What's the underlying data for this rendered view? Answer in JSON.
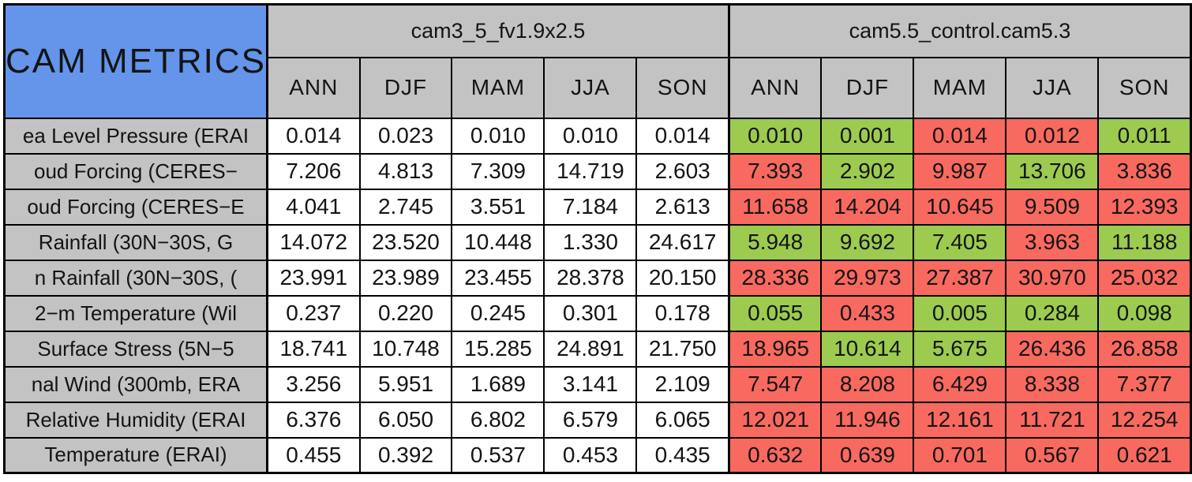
{
  "table": {
    "title": "CAM METRICS",
    "col_groups": [
      {
        "label": "cam3_5_fv1.9x2.5"
      },
      {
        "label": "cam5.5_control.cam5.3"
      }
    ],
    "season_headers": [
      "ANN",
      "DJF",
      "MAM",
      "JJA",
      "SON",
      "ANN",
      "DJF",
      "MAM",
      "JJA",
      "SON"
    ],
    "colors": {
      "title_bg": "#6495ea",
      "header_bg": "#c3c3c3",
      "baseline_bg": "#ffffff",
      "green_bg": "#9ccb50",
      "red_bg": "#f8695f",
      "border": "#000000",
      "text": "#141414"
    }
  },
  "chart_data": {
    "type": "table",
    "title": "CAM METRICS",
    "column_groups": [
      "cam3_5_fv1.9x2.5",
      "cam5.5_control.cam5.3"
    ],
    "columns": [
      "ANN",
      "DJF",
      "MAM",
      "JJA",
      "SON"
    ],
    "cell_color_values": {
      "green": "#9ccb50",
      "red": "#f8695f",
      "baseline": "#ffffff"
    },
    "rows": [
      {
        "label": "ea Level Pressure (ERAI",
        "baseline_values": [
          "0.014",
          "0.023",
          "0.010",
          "0.010",
          "0.014"
        ],
        "comparison_values": [
          "0.010",
          "0.001",
          "0.014",
          "0.012",
          "0.011"
        ],
        "comparison_colors": [
          "green",
          "green",
          "red",
          "red",
          "green"
        ]
      },
      {
        "label": "oud Forcing (CERES−",
        "baseline_values": [
          "7.206",
          "4.813",
          "7.309",
          "14.719",
          "2.603"
        ],
        "comparison_values": [
          "7.393",
          "2.902",
          "9.987",
          "13.706",
          "3.836"
        ],
        "comparison_colors": [
          "red",
          "green",
          "red",
          "green",
          "red"
        ]
      },
      {
        "label": "oud Forcing (CERES−E",
        "baseline_values": [
          "4.041",
          "2.745",
          "3.551",
          "7.184",
          "2.613"
        ],
        "comparison_values": [
          "11.658",
          "14.204",
          "10.645",
          "9.509",
          "12.393"
        ],
        "comparison_colors": [
          "red",
          "red",
          "red",
          "red",
          "red"
        ]
      },
      {
        "label": "Rainfall (30N−30S, G",
        "baseline_values": [
          "14.072",
          "23.520",
          "10.448",
          "1.330",
          "24.617"
        ],
        "comparison_values": [
          "5.948",
          "9.692",
          "7.405",
          "3.963",
          "11.188"
        ],
        "comparison_colors": [
          "green",
          "green",
          "green",
          "red",
          "green"
        ]
      },
      {
        "label": "n Rainfall (30N−30S, (",
        "baseline_values": [
          "23.991",
          "23.989",
          "23.455",
          "28.378",
          "20.150"
        ],
        "comparison_values": [
          "28.336",
          "29.973",
          "27.387",
          "30.970",
          "25.032"
        ],
        "comparison_colors": [
          "red",
          "red",
          "red",
          "red",
          "red"
        ]
      },
      {
        "label": "2−m Temperature (Wil",
        "baseline_values": [
          "0.237",
          "0.220",
          "0.245",
          "0.301",
          "0.178"
        ],
        "comparison_values": [
          "0.055",
          "0.433",
          "0.005",
          "0.284",
          "0.098"
        ],
        "comparison_colors": [
          "green",
          "red",
          "green",
          "green",
          "green"
        ]
      },
      {
        "label": "Surface Stress (5N−5",
        "baseline_values": [
          "18.741",
          "10.748",
          "15.285",
          "24.891",
          "21.750"
        ],
        "comparison_values": [
          "18.965",
          "10.614",
          "5.675",
          "26.436",
          "26.858"
        ],
        "comparison_colors": [
          "red",
          "green",
          "green",
          "red",
          "red"
        ]
      },
      {
        "label": "nal Wind (300mb, ERA",
        "baseline_values": [
          "3.256",
          "5.951",
          "1.689",
          "3.141",
          "2.109"
        ],
        "comparison_values": [
          "7.547",
          "8.208",
          "6.429",
          "8.338",
          "7.377"
        ],
        "comparison_colors": [
          "red",
          "red",
          "red",
          "red",
          "red"
        ]
      },
      {
        "label": "Relative Humidity (ERAI",
        "baseline_values": [
          "6.376",
          "6.050",
          "6.802",
          "6.579",
          "6.065"
        ],
        "comparison_values": [
          "12.021",
          "11.946",
          "12.161",
          "11.721",
          "12.254"
        ],
        "comparison_colors": [
          "red",
          "red",
          "red",
          "red",
          "red"
        ]
      },
      {
        "label": "Temperature (ERAI)",
        "baseline_values": [
          "0.455",
          "0.392",
          "0.537",
          "0.453",
          "0.435"
        ],
        "comparison_values": [
          "0.632",
          "0.639",
          "0.701",
          "0.567",
          "0.621"
        ],
        "comparison_colors": [
          "red",
          "red",
          "red",
          "red",
          "red"
        ]
      }
    ]
  }
}
